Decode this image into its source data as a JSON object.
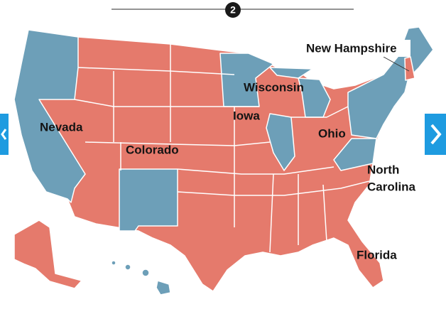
{
  "header": {
    "badge": "2"
  },
  "labels": [
    "New Hampshire",
    "Wisconsin",
    "Iowa",
    "Nevada",
    "Ohio",
    "Colorado",
    "North",
    "Carolina",
    "Florida"
  ]
}
